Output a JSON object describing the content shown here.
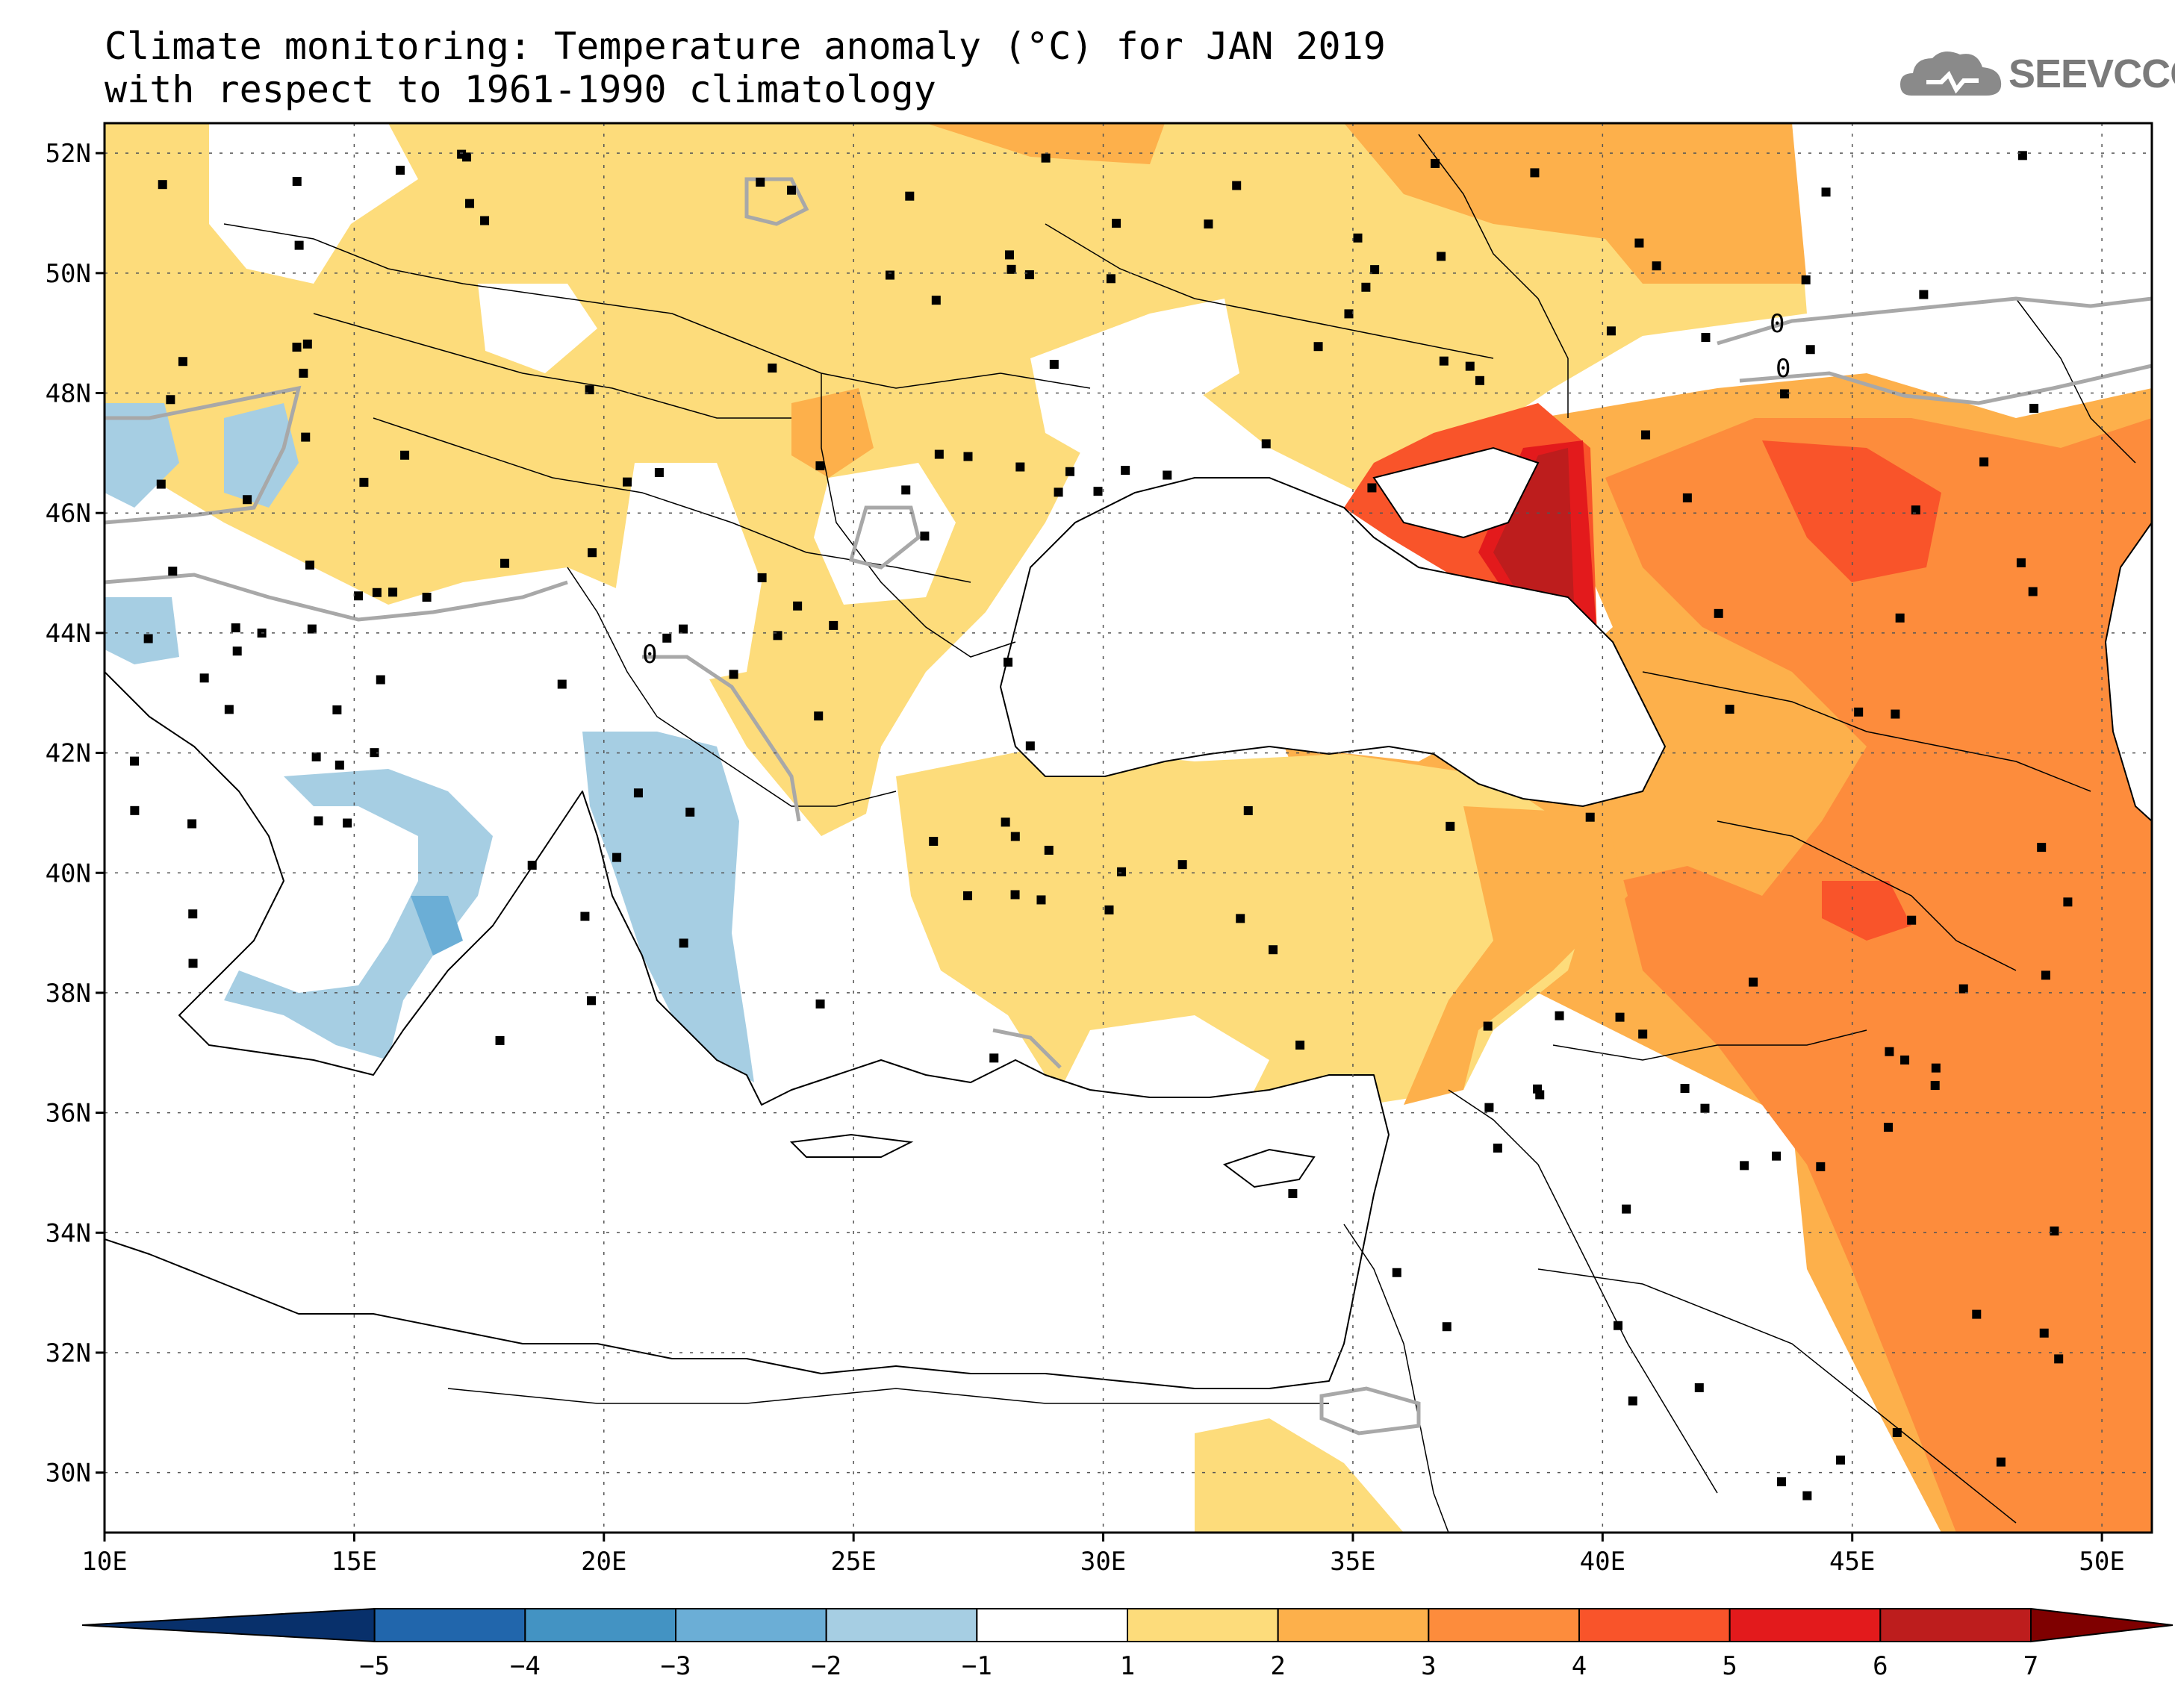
{
  "title_line1": "Climate monitoring: Temperature anomaly (°C) for JAN 2019",
  "title_line2": "with respect to 1961-1990 climatology",
  "logo": {
    "text": "SEEVCCC",
    "icon": "cloud-icon"
  },
  "map": {
    "lon_range": [
      10,
      51
    ],
    "lat_range": [
      29,
      52.5
    ],
    "lon_ticks": [
      "10E",
      "15E",
      "20E",
      "25E",
      "30E",
      "35E",
      "40E",
      "45E",
      "50E"
    ],
    "lat_ticks": [
      "52N",
      "50N",
      "48N",
      "46N",
      "44N",
      "42N",
      "40N",
      "38N",
      "36N",
      "34N",
      "32N",
      "30N"
    ],
    "contour_label": "0"
  },
  "colorbar": {
    "labels": [
      "-5",
      "-4",
      "-3",
      "-2",
      "-1",
      "1",
      "2",
      "3",
      "4",
      "5",
      "6",
      "7"
    ],
    "colors": [
      "#08306b",
      "#2166ac",
      "#4393c3",
      "#6baed6",
      "#a6cee3",
      "#ffffff",
      "#fddc7b",
      "#fdb04b",
      "#fd8c3c",
      "#f9542a",
      "#e31a1c",
      "#bd1d1d",
      "#7f0000"
    ]
  },
  "colors": {
    "ocean": "#ffffff",
    "land_white": "#ffffff",
    "yellow": "#fddc7b",
    "light_orange": "#fdb04b",
    "orange": "#fd8c3c",
    "red_orange": "#f9542a",
    "red": "#e31a1c",
    "dark_red": "#bd1d1d",
    "light_blue": "#a6cee3",
    "mid_blue": "#6baed6"
  }
}
